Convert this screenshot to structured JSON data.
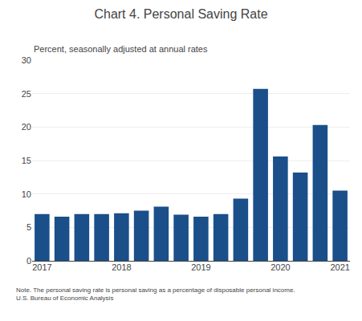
{
  "chart_data": {
    "type": "bar",
    "title": "Chart 4. Personal Saving Rate",
    "subtitle": "Percent, seasonally adjusted at annual rates",
    "annotations": [
      "Note. The personal saving rate is personal saving as a percentage of disposable personal income.\nU.S. Bureau of Economic Analysis"
    ],
    "categories": [
      "2017",
      null,
      null,
      null,
      "2018",
      null,
      null,
      null,
      "2019",
      null,
      null,
      null,
      "2020",
      null,
      null,
      "2021"
    ],
    "values": [
      7.0,
      6.6,
      7.0,
      7.0,
      7.1,
      7.5,
      8.1,
      6.9,
      6.6,
      7.0,
      9.3,
      25.7,
      15.6,
      13.2,
      20.3,
      10.5
    ],
    "color": "#1a4f8a",
    "ylim": [
      0,
      30
    ],
    "yticks": [
      0,
      5,
      10,
      15,
      20,
      25,
      30
    ],
    "grid": true
  }
}
